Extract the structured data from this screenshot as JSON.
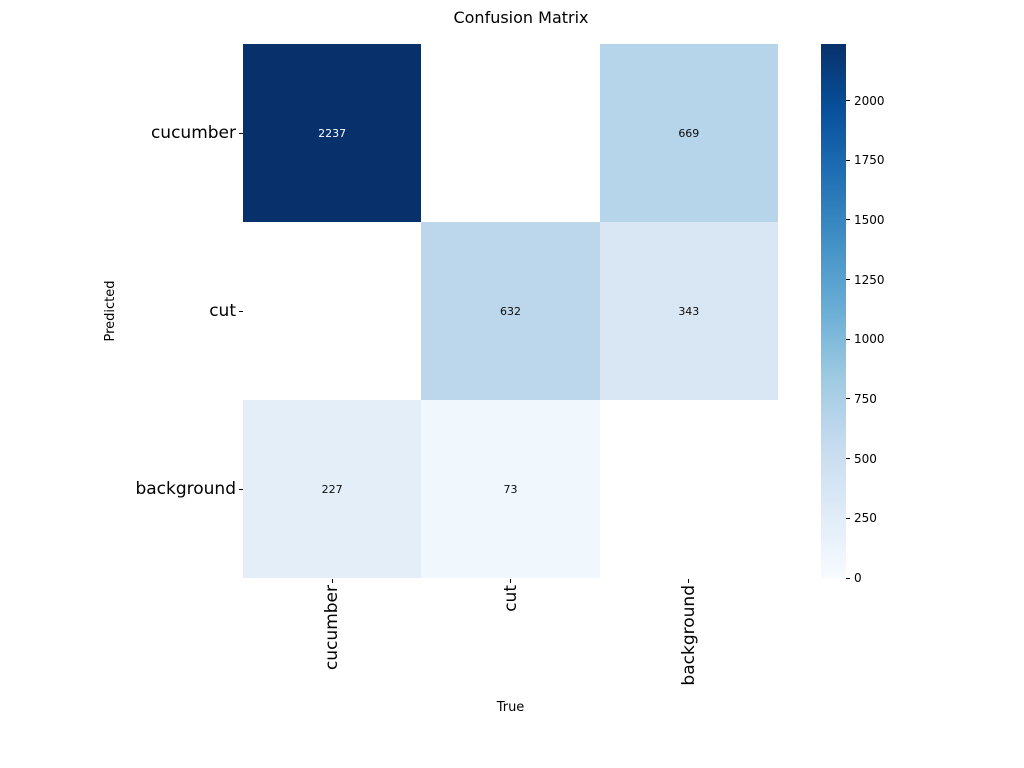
{
  "window": {
    "background_color": "#ffffff"
  },
  "chart_data": {
    "type": "heatmap",
    "title": "Confusion Matrix",
    "xlabel": "True",
    "ylabel": "Predicted",
    "x_categories": [
      "cucumber",
      "cut",
      "background"
    ],
    "y_categories": [
      "cucumber",
      "cut",
      "background"
    ],
    "matrix": [
      [
        2237,
        null,
        669
      ],
      [
        null,
        632,
        343
      ],
      [
        227,
        73,
        null
      ]
    ],
    "vmin": 0,
    "vmax": 2237,
    "grid": false,
    "legend_position": "right-colorbar",
    "colormap": "Blues",
    "colormap_stops": [
      {
        "pos": 0.0,
        "color": "#f7fbff"
      },
      {
        "pos": 0.125,
        "color": "#deebf7"
      },
      {
        "pos": 0.25,
        "color": "#c6dbef"
      },
      {
        "pos": 0.375,
        "color": "#9ecae1"
      },
      {
        "pos": 0.5,
        "color": "#6baed6"
      },
      {
        "pos": 0.625,
        "color": "#4292c6"
      },
      {
        "pos": 0.75,
        "color": "#2171b5"
      },
      {
        "pos": 0.875,
        "color": "#08519c"
      },
      {
        "pos": 1.0,
        "color": "#08306b"
      }
    ],
    "empty_cell_color": "#ffffff",
    "annotation_text_dark_cells": "#ffffff",
    "annotation_text_light_cells": "#0d0d0d",
    "tick_color": "#000000",
    "colorbar_ticks": [
      0,
      250,
      500,
      750,
      1000,
      1250,
      1500,
      1750,
      2000
    ]
  }
}
